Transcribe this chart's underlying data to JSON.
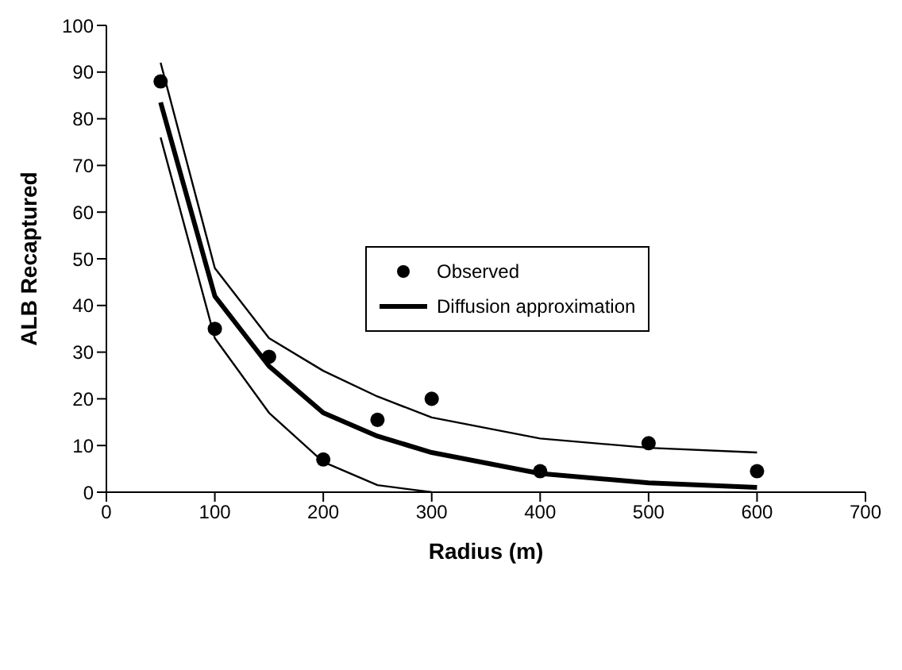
{
  "chart_data": {
    "type": "line",
    "xlabel": "Radius (m)",
    "ylabel": "ALB Recaptured",
    "xlim": [
      0,
      700
    ],
    "xticks": [
      0,
      100,
      200,
      300,
      400,
      500,
      600,
      700
    ],
    "ylim": [
      0,
      100
    ],
    "yticks": [
      0,
      10,
      20,
      30,
      40,
      50,
      60,
      70,
      80,
      90,
      100
    ],
    "legend": "right",
    "marker": "none",
    "series": [
      {
        "name": "Observed",
        "type": "scatter",
        "marker": "circle",
        "color": "#000000",
        "x": [
          50,
          100,
          150,
          200,
          250,
          300,
          400,
          500,
          600
        ],
        "values": [
          88,
          35,
          29,
          7,
          15.5,
          20,
          4.5,
          10.5,
          4.5
        ]
      },
      {
        "name": "Diffusion approximation",
        "color": "#000000",
        "x": [
          50,
          100,
          150,
          200,
          250,
          300,
          400,
          500,
          600
        ],
        "values": [
          83.5,
          42,
          27,
          17,
          12,
          8.5,
          4,
          2,
          1
        ]
      },
      {
        "color": "#000000",
        "x": [
          50,
          100,
          150,
          200,
          250,
          300,
          400,
          500,
          600
        ],
        "values": [
          92,
          48,
          33,
          26,
          20.5,
          16,
          11.5,
          9.5,
          8.5
        ]
      },
      {
        "color": "#000000",
        "x": [
          50,
          100,
          150,
          200,
          250,
          300
        ],
        "values": [
          76,
          33,
          17,
          6.5,
          1.5,
          0
        ]
      }
    ]
  }
}
